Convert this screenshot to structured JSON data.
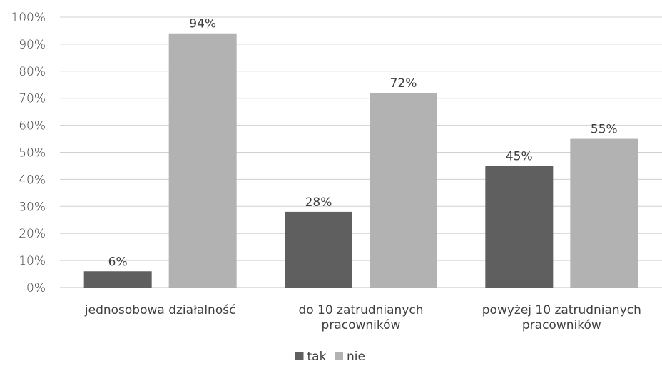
{
  "chart_data": {
    "type": "bar",
    "title": "",
    "xlabel": "",
    "ylabel": "",
    "ylim": [
      0,
      100
    ],
    "ytick_step": 10,
    "ytick_suffix": "%",
    "grid": true,
    "legend_position": "bottom",
    "categories": [
      [
        "jednosobowa działalność"
      ],
      [
        "do 10 zatrudnianych",
        "pracowników"
      ],
      [
        "powyżej 10 zatrudnianych",
        "pracowników"
      ]
    ],
    "series": [
      {
        "name": "tak",
        "color": "#5f5f5f",
        "values": [
          6,
          28,
          45
        ],
        "labels": [
          "6%",
          "28%",
          "45%"
        ]
      },
      {
        "name": "nie",
        "color": "#b2b2b2",
        "values": [
          94,
          72,
          55
        ],
        "labels": [
          "94%",
          "72%",
          "55%"
        ]
      }
    ]
  }
}
